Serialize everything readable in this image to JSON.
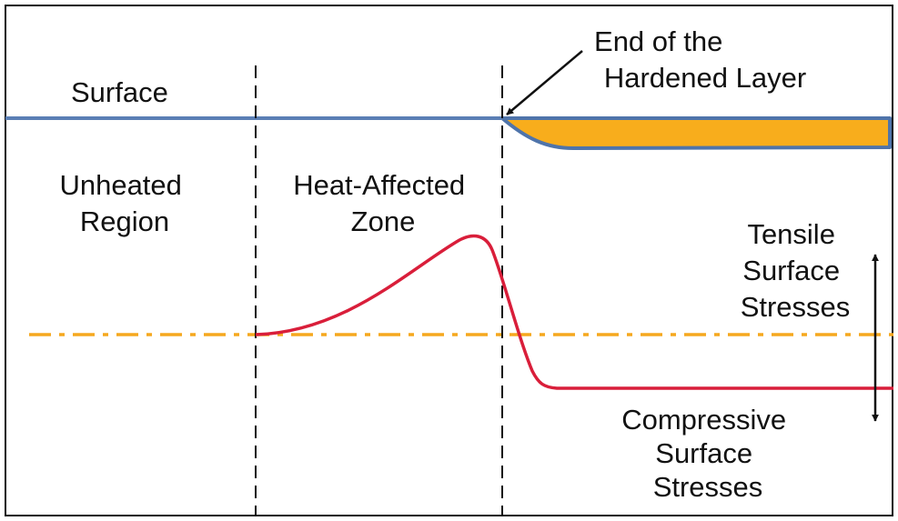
{
  "labels": {
    "surface": "Surface",
    "end_of_layer": [
      "End of the",
      "Hardened Layer"
    ],
    "unheated": [
      "Unheated",
      "Region"
    ],
    "haz": [
      "Heat-Affected",
      "Zone"
    ],
    "tensile": [
      "Tensile",
      "Surface",
      "Stresses"
    ],
    "compressive": [
      "Compressive",
      "Surface",
      "Stresses"
    ]
  },
  "colors": {
    "frame": "#111111",
    "surface_line": "#5B7FB5",
    "hardened_fill": "#F8AD1C",
    "hardened_outline": "#4F74AA",
    "stress_curve": "#D91E3A",
    "zero_stress_line": "#F5A81F",
    "zone_divider": "#111111",
    "arrows": "#111111"
  },
  "icons": {
    "pointer": "callout-arrow",
    "stress_range": "double-headed-arrow"
  }
}
